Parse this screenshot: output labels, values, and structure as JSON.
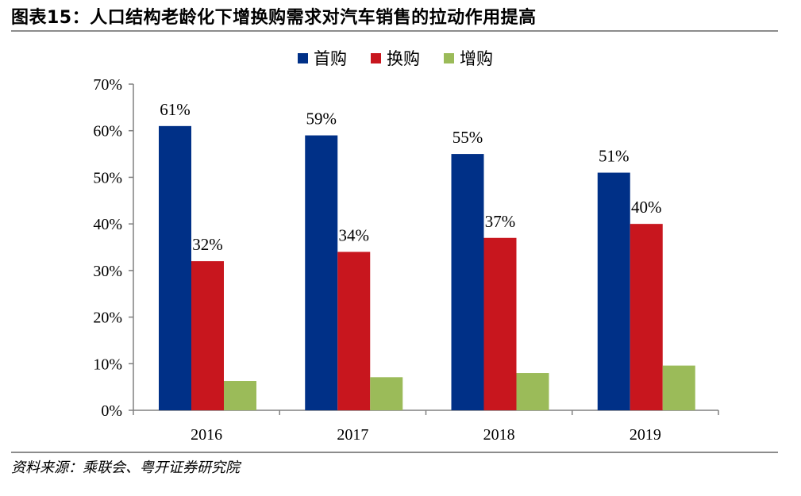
{
  "figure": {
    "title": "图表15：人口结构老龄化下增换购需求对汽车销售的拉动作用提高",
    "source": "资料来源：乘联会、粤开证券研究院"
  },
  "chart_data": {
    "type": "bar",
    "categories": [
      "2016",
      "2017",
      "2018",
      "2019"
    ],
    "series": [
      {
        "name": "首购",
        "values": [
          61,
          59,
          55,
          51
        ],
        "color": "#003087",
        "labels": [
          "61%",
          "59%",
          "55%",
          "51%"
        ]
      },
      {
        "name": "换购",
        "values": [
          32,
          34,
          37,
          40
        ],
        "color": "#c8161e",
        "labels": [
          "32%",
          "34%",
          "37%",
          "40%"
        ]
      },
      {
        "name": "增购",
        "values": [
          6.3,
          7.1,
          8.0,
          9.6
        ],
        "color": "#9bbb59",
        "labels": []
      }
    ],
    "yticks": [
      "0%",
      "10%",
      "20%",
      "30%",
      "40%",
      "50%",
      "60%",
      "70%"
    ],
    "ylim": [
      0,
      70
    ],
    "grid": false,
    "legend": "top-center"
  }
}
